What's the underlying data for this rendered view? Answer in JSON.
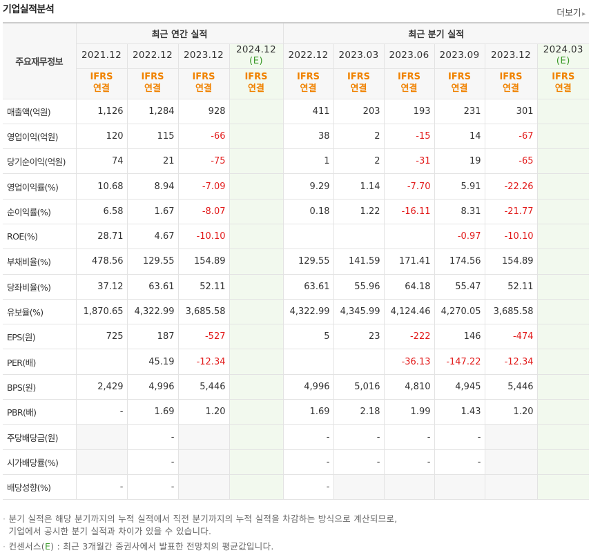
{
  "title": "기업실적분석",
  "more_label": "더보기",
  "header": {
    "row_header": "주요재무정보",
    "annual_group": "최근 연간 실적",
    "quarter_group": "최근 분기 실적",
    "periods": [
      {
        "label": "2021.12",
        "est": ""
      },
      {
        "label": "2022.12",
        "est": ""
      },
      {
        "label": "2023.12",
        "est": ""
      },
      {
        "label": "2024.12",
        "est": "(E)"
      },
      {
        "label": "2022.12",
        "est": ""
      },
      {
        "label": "2023.03",
        "est": ""
      },
      {
        "label": "2023.06",
        "est": ""
      },
      {
        "label": "2023.09",
        "est": ""
      },
      {
        "label": "2023.12",
        "est": ""
      },
      {
        "label": "2024.03",
        "est": "(E)"
      }
    ],
    "ifrs_line1": "IFRS",
    "ifrs_line2": "연결"
  },
  "rows": [
    {
      "label": "매출액(억원)",
      "values": [
        "1,126",
        "1,284",
        "928",
        "",
        "411",
        "203",
        "193",
        "231",
        "301",
        ""
      ]
    },
    {
      "label": "영업이익(억원)",
      "values": [
        "120",
        "115",
        "-66",
        "",
        "38",
        "2",
        "-15",
        "14",
        "-67",
        ""
      ]
    },
    {
      "label": "당기순이익(억원)",
      "values": [
        "74",
        "21",
        "-75",
        "",
        "1",
        "2",
        "-31",
        "19",
        "-65",
        ""
      ]
    },
    {
      "label": "영업이익률(%)",
      "values": [
        "10.68",
        "8.94",
        "-7.09",
        "",
        "9.29",
        "1.14",
        "-7.70",
        "5.91",
        "-22.26",
        ""
      ]
    },
    {
      "label": "순이익률(%)",
      "values": [
        "6.58",
        "1.67",
        "-8.07",
        "",
        "0.18",
        "1.22",
        "-16.11",
        "8.31",
        "-21.77",
        ""
      ]
    },
    {
      "label": "ROE(%)",
      "values": [
        "28.71",
        "4.67",
        "-10.10",
        "",
        "",
        "",
        "",
        "-0.97",
        "-10.10",
        ""
      ]
    },
    {
      "label": "부채비율(%)",
      "values": [
        "478.56",
        "129.55",
        "154.89",
        "",
        "129.55",
        "141.59",
        "171.41",
        "174.56",
        "154.89",
        ""
      ]
    },
    {
      "label": "당좌비율(%)",
      "values": [
        "37.12",
        "63.61",
        "52.11",
        "",
        "63.61",
        "55.96",
        "64.18",
        "55.47",
        "52.11",
        ""
      ]
    },
    {
      "label": "유보율(%)",
      "values": [
        "1,870.65",
        "4,322.99",
        "3,685.58",
        "",
        "4,322.99",
        "4,345.99",
        "4,124.46",
        "4,270.05",
        "3,685.58",
        ""
      ]
    },
    {
      "label": "EPS(원)",
      "values": [
        "725",
        "187",
        "-527",
        "",
        "5",
        "23",
        "-222",
        "146",
        "-474",
        ""
      ]
    },
    {
      "label": "PER(배)",
      "values": [
        "",
        "45.19",
        "-12.34",
        "",
        "",
        "",
        "-36.13",
        "-147.22",
        "-12.34",
        ""
      ]
    },
    {
      "label": "BPS(원)",
      "values": [
        "2,429",
        "4,996",
        "5,446",
        "",
        "4,996",
        "5,016",
        "4,810",
        "4,945",
        "5,446",
        ""
      ]
    },
    {
      "label": "PBR(배)",
      "values": [
        "-",
        "1.69",
        "1.20",
        "",
        "1.69",
        "2.18",
        "1.99",
        "1.43",
        "1.20",
        ""
      ]
    },
    {
      "label": "주당배당금(원)",
      "values": [
        "",
        "-",
        "",
        "",
        "-",
        "-",
        "-",
        "-",
        "",
        ""
      ]
    },
    {
      "label": "시가배당률(%)",
      "values": [
        "",
        "-",
        "",
        "",
        "-",
        "-",
        "-",
        "-",
        "",
        ""
      ]
    },
    {
      "label": "배당성향(%)",
      "values": [
        "-",
        "-",
        "",
        "",
        "-",
        "",
        "",
        "",
        "",
        ""
      ]
    }
  ],
  "notes": {
    "line1": "분기 실적은 해당 분기까지의 누적 실적에서 직전 분기까지의 누적 실적을 차감하는 방식으로 계산되므로,",
    "line2": "기업에서 공시한 분기 실적과 차이가 있을 수 있습니다.",
    "line3_pre": "컨센서스(",
    "line3_e": "E",
    "line3_post": ") : 최근 3개월간 증권사에서 발표한 전망치의 평균값입니다."
  }
}
